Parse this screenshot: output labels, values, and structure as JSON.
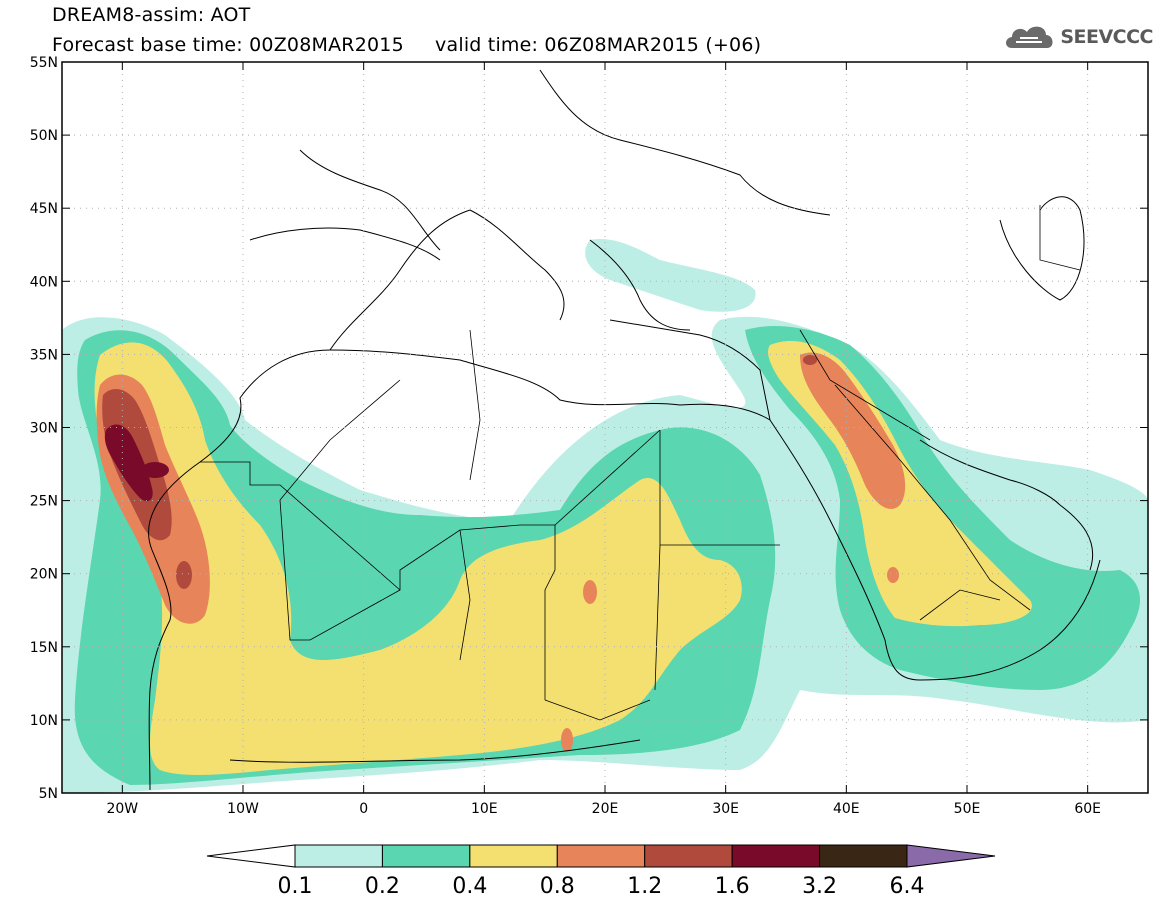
{
  "header": {
    "title_line1": "DREAM8-assim: AOT",
    "title_line2": "Forecast base time: 00Z08MAR2015     valid time: 06Z08MAR2015 (+06)",
    "logo_text": "SEEVCCC"
  },
  "map": {
    "lon_range": [
      -25,
      65
    ],
    "lat_range": [
      5,
      55
    ],
    "lon_ticks": [
      {
        "value": -20,
        "label": "20W"
      },
      {
        "value": -10,
        "label": "10W"
      },
      {
        "value": 0,
        "label": "0"
      },
      {
        "value": 10,
        "label": "10E"
      },
      {
        "value": 20,
        "label": "20E"
      },
      {
        "value": 30,
        "label": "30E"
      },
      {
        "value": 40,
        "label": "40E"
      },
      {
        "value": 50,
        "label": "50E"
      },
      {
        "value": 60,
        "label": "60E"
      }
    ],
    "lat_ticks": [
      {
        "value": 5,
        "label": "5N"
      },
      {
        "value": 10,
        "label": "10N"
      },
      {
        "value": 15,
        "label": "15N"
      },
      {
        "value": 20,
        "label": "20N"
      },
      {
        "value": 25,
        "label": "25N"
      },
      {
        "value": 30,
        "label": "30N"
      },
      {
        "value": 35,
        "label": "35N"
      },
      {
        "value": 40,
        "label": "40N"
      },
      {
        "value": 45,
        "label": "45N"
      },
      {
        "value": 50,
        "label": "50N"
      },
      {
        "value": 55,
        "label": "55N"
      }
    ],
    "gridlines": true
  },
  "colorbar": {
    "labels": [
      "0.1",
      "0.2",
      "0.4",
      "0.8",
      "1.2",
      "1.6",
      "3.2",
      "6.4"
    ],
    "colors": [
      "#ffffff",
      "#bdeee6",
      "#5ad6b0",
      "#f4e070",
      "#e8845a",
      "#b04a3c",
      "#7a0a2a",
      "#3a2614",
      "#8a6aa8"
    ]
  },
  "colors": {
    "level1": "#bdeee6",
    "level2": "#5ad6b0",
    "level3": "#f4e070",
    "level4": "#e8845a",
    "level5": "#b04a3c",
    "level6": "#7a0a2a"
  }
}
